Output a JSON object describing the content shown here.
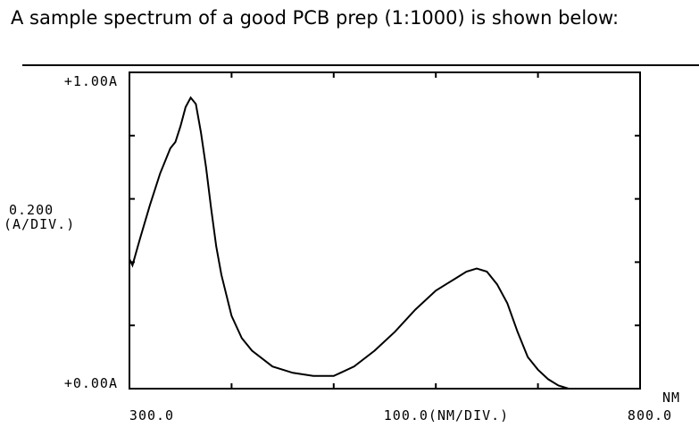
{
  "caption": "A sample spectrum of a good PCB prep (1:1000) is shown below:",
  "chart_data": {
    "type": "line",
    "x_unit_label": "NM",
    "xlim": [
      300,
      800
    ],
    "ylim": [
      0,
      1.0
    ],
    "x_ticks": [
      300,
      400,
      500,
      600,
      700,
      800
    ],
    "y_ticks": [
      0,
      0.2,
      0.4,
      0.6,
      0.8,
      1.0
    ],
    "labels": {
      "y_top": "+1.00A",
      "y_bottom": "+0.00A",
      "y_scale": "0.200",
      "y_scale_unit": "(A/DIV.)",
      "x_left": "300.0",
      "x_center": "100.0(NM/DIV.)",
      "x_right": "800.0"
    },
    "series": [
      {
        "x": [
          300,
          303,
          310,
          320,
          330,
          340,
          345,
          350,
          355,
          360,
          365,
          370,
          375,
          380,
          385,
          390,
          400,
          410,
          420,
          440,
          460,
          480,
          500,
          520,
          540,
          560,
          580,
          600,
          610,
          620,
          630,
          640,
          650,
          660,
          670,
          680,
          690,
          700,
          710,
          720,
          730
        ],
        "y": [
          0.41,
          0.39,
          0.47,
          0.58,
          0.68,
          0.76,
          0.78,
          0.83,
          0.89,
          0.92,
          0.9,
          0.81,
          0.7,
          0.57,
          0.45,
          0.36,
          0.23,
          0.16,
          0.12,
          0.07,
          0.05,
          0.04,
          0.04,
          0.07,
          0.12,
          0.18,
          0.25,
          0.31,
          0.33,
          0.35,
          0.37,
          0.38,
          0.37,
          0.33,
          0.27,
          0.18,
          0.1,
          0.06,
          0.03,
          0.01,
          0.0
        ]
      }
    ]
  }
}
